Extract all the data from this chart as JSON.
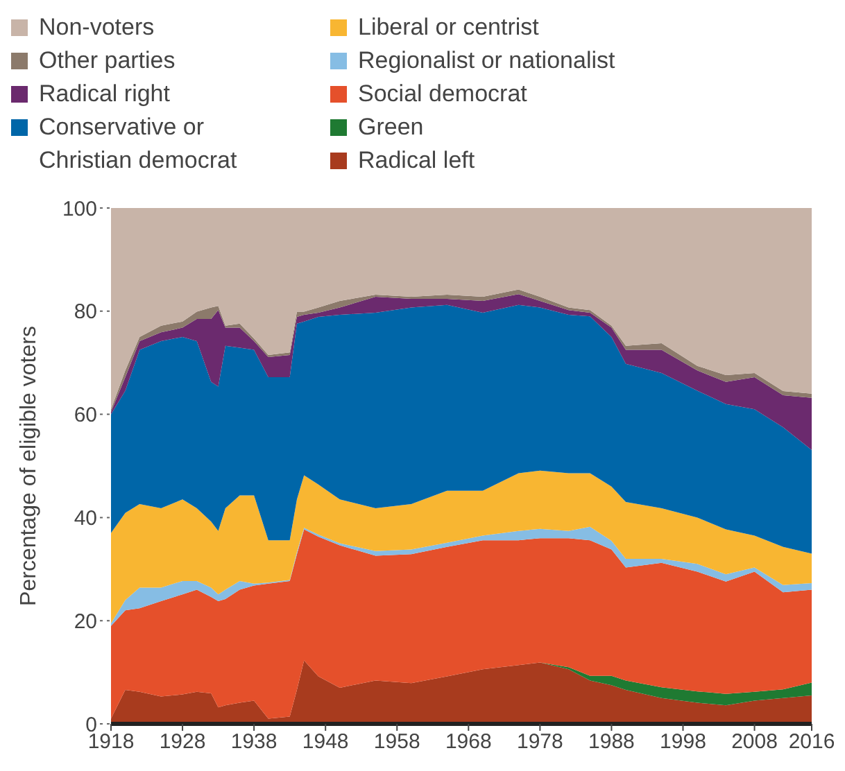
{
  "chart_data": {
    "type": "area",
    "stacked": true,
    "ylabel": "Percentage of eligible voters",
    "legend": "top",
    "x": [
      1918,
      1920,
      1922,
      1925,
      1928,
      1930,
      1932,
      1933,
      1934,
      1936,
      1938,
      1940,
      1943,
      1944,
      1945,
      1947,
      1950,
      1955,
      1960,
      1965,
      1970,
      1975,
      1978,
      1982,
      1985,
      1988,
      1990,
      1995,
      2000,
      2004,
      2008,
      2012,
      2016
    ],
    "xlim": [
      1918,
      2016
    ],
    "xticks": [
      1918,
      1928,
      1938,
      1948,
      1958,
      1968,
      1978,
      1988,
      1998,
      2008,
      2016
    ],
    "ylim": [
      0,
      100
    ],
    "yticks": [
      0,
      20,
      40,
      60,
      80,
      100
    ],
    "series": [
      {
        "name": "Radical left",
        "color": "#a83b1e",
        "values": [
          1,
          6.6,
          6.2,
          5.3,
          5.7,
          6.2,
          5.9,
          3.2,
          3.6,
          4.1,
          4.5,
          1,
          1.4,
          6.6,
          12.3,
          9.2,
          7,
          8.4,
          7.9,
          9.2,
          10.6,
          11.4,
          11.9,
          10.6,
          8.4,
          7.5,
          6.6,
          5,
          4.1,
          3.6,
          4.5,
          5,
          5.5
        ]
      },
      {
        "name": "Green",
        "color": "#1f7a32",
        "values": [
          0,
          0,
          0,
          0,
          0,
          0,
          0,
          0,
          0,
          0,
          0,
          0,
          0,
          0,
          0,
          0,
          0,
          0,
          0,
          0,
          0,
          0,
          0,
          0.4,
          0.9,
          1.8,
          1.8,
          2.1,
          2.2,
          2.2,
          1.7,
          1.7,
          2.5
        ]
      },
      {
        "name": "Social democrat",
        "color": "#e5502b",
        "values": [
          18,
          15.4,
          16.2,
          18.5,
          19.4,
          19.8,
          18.7,
          20.6,
          20.6,
          21.9,
          22.3,
          26.2,
          26.3,
          26.3,
          25.4,
          27.1,
          27.6,
          24.2,
          25,
          25.1,
          25,
          24.2,
          24.1,
          25,
          26.3,
          24.5,
          21.9,
          24.1,
          23.2,
          21.8,
          23.3,
          18.8,
          18
        ]
      },
      {
        "name": "Regionalist or nationalist",
        "color": "#86bde4",
        "values": [
          0.5,
          2,
          4,
          2.6,
          2.6,
          1.7,
          1.8,
          1.3,
          1.8,
          1.7,
          0.4,
          0.2,
          0.2,
          0.4,
          0.3,
          0.4,
          0.4,
          0.9,
          0.9,
          0.8,
          0.9,
          1.8,
          1.8,
          1.4,
          2.6,
          1.7,
          1.7,
          0.8,
          1.5,
          1.4,
          0.8,
          1.4,
          1.3
        ]
      },
      {
        "name": "Liberal or centrist",
        "color": "#f8b632",
        "values": [
          17.5,
          16.9,
          16.2,
          15.4,
          15.8,
          14.1,
          12.8,
          12.3,
          15.8,
          16.6,
          17.1,
          8.2,
          7.7,
          10.2,
          10.2,
          9.7,
          8.5,
          8.3,
          8.8,
          10.1,
          8.7,
          11.2,
          11.3,
          11.2,
          10.4,
          10.5,
          11,
          9.8,
          9,
          8.7,
          6.2,
          7.4,
          5.7
        ]
      },
      {
        "name": "Conservative or Christian democrat",
        "color": "#0066a8",
        "values": [
          23,
          23.7,
          29.9,
          32.4,
          31.5,
          32.4,
          27.1,
          28,
          31.5,
          28.6,
          28.2,
          31.6,
          31.6,
          34.1,
          29.8,
          32.5,
          35.8,
          37.9,
          38.1,
          36,
          34.5,
          32.6,
          31.6,
          30.7,
          30.4,
          29,
          26.8,
          26.2,
          24.6,
          24.3,
          24.5,
          23.2,
          20.1
        ]
      },
      {
        "name": "Radical right",
        "color": "#6b2a6e",
        "values": [
          0.5,
          2.6,
          1.7,
          1.7,
          1.8,
          4.3,
          12.2,
          14.8,
          3.5,
          3.9,
          1.7,
          3.9,
          4.3,
          1.3,
          1.3,
          0.8,
          1.4,
          3.1,
          1.7,
          1.2,
          2.3,
          2.1,
          1.3,
          0.9,
          0.7,
          1.8,
          2.7,
          4.5,
          3.9,
          4.3,
          6.2,
          6.2,
          10.1
        ]
      },
      {
        "name": "Other parties",
        "color": "#8c7a6b",
        "values": [
          0.5,
          1.3,
          0.8,
          1.3,
          1.2,
          1.4,
          2.2,
          0.8,
          0.4,
          0.8,
          0.5,
          0.4,
          0.5,
          1,
          0.6,
          1,
          1.3,
          0.4,
          0.4,
          0.8,
          0.8,
          0.9,
          0.8,
          0.5,
          0.5,
          0.4,
          0.8,
          1.3,
          0.9,
          1.3,
          0.8,
          0.8,
          0.8
        ]
      },
      {
        "name": "Non-voters",
        "color": "#c8b4a8",
        "values": [
          39,
          31.5,
          25,
          22.8,
          22,
          20.1,
          19.3,
          19,
          22.8,
          22.4,
          25.3,
          28.5,
          28,
          20.1,
          20.1,
          19.3,
          18,
          16.8,
          17.2,
          16.8,
          17.2,
          15.8,
          17.2,
          19.3,
          19.8,
          22.8,
          26.7,
          26.2,
          30.6,
          32.4,
          32,
          35.5,
          36
        ]
      }
    ]
  }
}
